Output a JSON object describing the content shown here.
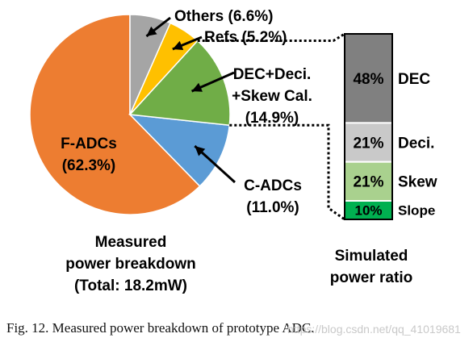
{
  "chart_data": [
    {
      "type": "pie",
      "title_lines": [
        "Measured",
        "power breakdown",
        "(Total: 18.2mW)"
      ],
      "slices": [
        {
          "label": "F-ADCs",
          "value": 62.3,
          "pct_text": "(62.3%)",
          "color": "#ED7D31"
        },
        {
          "label": "C-ADCs",
          "value": 11.0,
          "pct_text": "(11.0%)",
          "color": "#5B9BD5"
        },
        {
          "label_lines": [
            "DEC+Deci.",
            "+Skew Cal."
          ],
          "value": 14.9,
          "pct_text": "(14.9%)",
          "color": "#70AD47"
        },
        {
          "label": "Refs (5.2%)",
          "value": 5.2,
          "color": "#FFC000"
        },
        {
          "label": "Others (6.6%)",
          "value": 6.6,
          "color": "#A5A5A5"
        }
      ]
    },
    {
      "type": "bar",
      "stacked": true,
      "title_lines": [
        "Simulated",
        "power ratio"
      ],
      "segments": [
        {
          "label": "DEC",
          "value": 48,
          "value_text": "48%",
          "color": "#808080"
        },
        {
          "label": "Deci.",
          "value": 21,
          "value_text": "21%",
          "color": "#C9C9C9"
        },
        {
          "label": "Skew",
          "value": 21,
          "value_text": "21%",
          "color": "#A9D18E"
        },
        {
          "label": "Slope",
          "value": 10,
          "value_text": "10%",
          "color": "#00B050"
        }
      ]
    }
  ],
  "caption": "Fig. 12.   Measured power breakdown of prototype ADC.",
  "watermark": "https://blog.csdn.net/qq_41019681"
}
